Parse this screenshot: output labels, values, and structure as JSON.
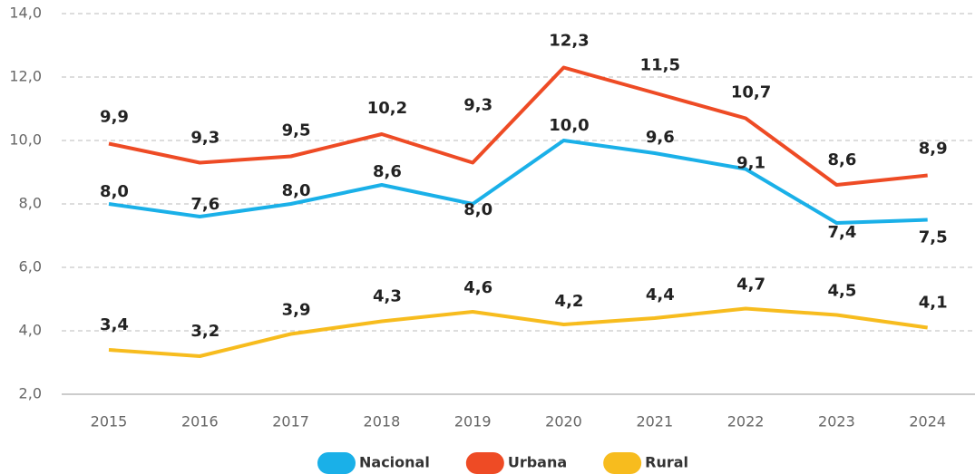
{
  "chart_data": {
    "type": "line",
    "categories": [
      "2015",
      "2016",
      "2017",
      "2018",
      "2019",
      "2020",
      "2021",
      "2022",
      "2023",
      "2024"
    ],
    "series": [
      {
        "name": "Nacional",
        "color": "#1ab0e8",
        "values": [
          8.0,
          7.6,
          8.0,
          8.6,
          8.0,
          10.0,
          9.6,
          9.1,
          7.4,
          7.5
        ],
        "value_labels": [
          "8,0",
          "7,6",
          "8,0",
          "8,6",
          "8,0",
          "10,0",
          "9,6",
          "9,1",
          "7,4",
          "7,5"
        ]
      },
      {
        "name": "Urbana",
        "color": "#ee4b25",
        "values": [
          9.9,
          9.3,
          9.5,
          10.2,
          9.3,
          12.3,
          11.5,
          10.7,
          8.6,
          8.9
        ],
        "value_labels": [
          "9,9",
          "9,3",
          "9,5",
          "10,2",
          "9,3",
          "12,3",
          "11,5",
          "10,7",
          "8,6",
          "8,9"
        ]
      },
      {
        "name": "Rural",
        "color": "#f7bc1e",
        "values": [
          3.4,
          3.2,
          3.9,
          4.3,
          4.6,
          4.2,
          4.4,
          4.7,
          4.5,
          4.1
        ],
        "value_labels": [
          "3,4",
          "3,2",
          "3,9",
          "4,3",
          "4,6",
          "4,2",
          "4,4",
          "4,7",
          "4,5",
          "4,1"
        ]
      }
    ],
    "ylim": [
      2.0,
      14.0
    ],
    "yticks": [
      {
        "value": 2.0,
        "label": "2,0"
      },
      {
        "value": 4.0,
        "label": "4,0"
      },
      {
        "value": 6.0,
        "label": "6,0"
      },
      {
        "value": 8.0,
        "label": "8,0"
      },
      {
        "value": 10.0,
        "label": "10,0"
      },
      {
        "value": 12.0,
        "label": "12,0"
      },
      {
        "value": 14.0,
        "label": "14,0"
      }
    ],
    "grid": true,
    "legend": "bottom"
  }
}
